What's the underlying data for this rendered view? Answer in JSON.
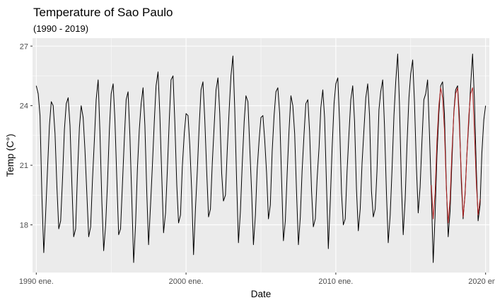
{
  "chart_data": {
    "type": "line",
    "title": "Temperature of Sao Paulo",
    "subtitle": "(1990 - 2019)",
    "xlabel": "Date",
    "ylabel": "Temp (C°)",
    "x_ticks": [
      {
        "label": "1990 ene.",
        "value": 1990.0
      },
      {
        "label": "2000 ene.",
        "value": 2000.0
      },
      {
        "label": "2010 ene.",
        "value": 2010.0
      },
      {
        "label": "2020 ene.",
        "value": 2020.0
      }
    ],
    "y_ticks": [
      18,
      21,
      24,
      27
    ],
    "xlim": [
      1989.75,
      2020.25
    ],
    "ylim": [
      15.6,
      27.4
    ],
    "grid": true,
    "series": [
      {
        "color": "#000000",
        "points": [
          [
            1990.0,
            25.0
          ],
          [
            1990.13,
            24.6
          ],
          [
            1990.25,
            23.5
          ],
          [
            1990.38,
            19.4
          ],
          [
            1990.5,
            16.6
          ],
          [
            1990.63,
            18.6
          ],
          [
            1990.75,
            20.8
          ],
          [
            1990.88,
            23.0
          ],
          [
            1991.0,
            24.2
          ],
          [
            1991.13,
            24.0
          ],
          [
            1991.25,
            22.6
          ],
          [
            1991.38,
            19.9
          ],
          [
            1991.5,
            17.8
          ],
          [
            1991.63,
            18.2
          ],
          [
            1991.75,
            20.3
          ],
          [
            1991.88,
            22.8
          ],
          [
            1992.0,
            24.1
          ],
          [
            1992.13,
            24.4
          ],
          [
            1992.25,
            23.0
          ],
          [
            1992.38,
            20.0
          ],
          [
            1992.5,
            17.4
          ],
          [
            1992.63,
            17.8
          ],
          [
            1992.75,
            20.5
          ],
          [
            1992.88,
            22.9
          ],
          [
            1993.0,
            24.0
          ],
          [
            1993.13,
            23.4
          ],
          [
            1993.25,
            21.8
          ],
          [
            1993.38,
            19.5
          ],
          [
            1993.5,
            17.4
          ],
          [
            1993.63,
            17.9
          ],
          [
            1993.75,
            20.2
          ],
          [
            1993.88,
            22.3
          ],
          [
            1994.0,
            24.3
          ],
          [
            1994.13,
            25.3
          ],
          [
            1994.25,
            22.7
          ],
          [
            1994.38,
            19.1
          ],
          [
            1994.5,
            16.7
          ],
          [
            1994.63,
            18.0
          ],
          [
            1994.75,
            20.0
          ],
          [
            1994.88,
            22.8
          ],
          [
            1995.0,
            24.6
          ],
          [
            1995.13,
            25.1
          ],
          [
            1995.25,
            23.3
          ],
          [
            1995.38,
            20.3
          ],
          [
            1995.5,
            17.5
          ],
          [
            1995.63,
            17.8
          ],
          [
            1995.75,
            20.0
          ],
          [
            1995.88,
            22.3
          ],
          [
            1996.0,
            24.3
          ],
          [
            1996.13,
            24.7
          ],
          [
            1996.25,
            22.5
          ],
          [
            1996.38,
            19.3
          ],
          [
            1996.5,
            16.1
          ],
          [
            1996.63,
            18.0
          ],
          [
            1996.75,
            20.8
          ],
          [
            1996.88,
            22.8
          ],
          [
            1997.0,
            24.1
          ],
          [
            1997.13,
            24.9
          ],
          [
            1997.25,
            23.0
          ],
          [
            1997.38,
            19.6
          ],
          [
            1997.5,
            17.0
          ],
          [
            1997.63,
            19.0
          ],
          [
            1997.75,
            20.9
          ],
          [
            1997.88,
            23.2
          ],
          [
            1998.0,
            25.0
          ],
          [
            1998.13,
            25.7
          ],
          [
            1998.25,
            23.6
          ],
          [
            1998.38,
            20.4
          ],
          [
            1998.5,
            17.6
          ],
          [
            1998.63,
            18.6
          ],
          [
            1998.75,
            20.7
          ],
          [
            1998.88,
            23.3
          ],
          [
            1999.0,
            25.3
          ],
          [
            1999.13,
            25.5
          ],
          [
            1999.25,
            23.2
          ],
          [
            1999.38,
            20.0
          ],
          [
            1999.5,
            18.1
          ],
          [
            1999.63,
            18.5
          ],
          [
            1999.75,
            20.9
          ],
          [
            1999.88,
            22.6
          ],
          [
            2000.0,
            23.6
          ],
          [
            2000.13,
            23.5
          ],
          [
            2000.25,
            22.0
          ],
          [
            2000.38,
            19.7
          ],
          [
            2000.5,
            16.5
          ],
          [
            2000.63,
            18.8
          ],
          [
            2000.75,
            20.7
          ],
          [
            2000.88,
            23.0
          ],
          [
            2001.0,
            24.8
          ],
          [
            2001.13,
            25.2
          ],
          [
            2001.25,
            23.3
          ],
          [
            2001.38,
            20.7
          ],
          [
            2001.5,
            18.4
          ],
          [
            2001.63,
            18.8
          ],
          [
            2001.75,
            21.1
          ],
          [
            2001.88,
            23.0
          ],
          [
            2002.0,
            24.8
          ],
          [
            2002.13,
            25.4
          ],
          [
            2002.25,
            23.6
          ],
          [
            2002.38,
            20.6
          ],
          [
            2002.5,
            19.2
          ],
          [
            2002.63,
            19.5
          ],
          [
            2002.75,
            21.7
          ],
          [
            2002.88,
            23.8
          ],
          [
            2003.0,
            25.5
          ],
          [
            2003.13,
            26.5
          ],
          [
            2003.25,
            23.9
          ],
          [
            2003.38,
            20.1
          ],
          [
            2003.5,
            17.1
          ],
          [
            2003.63,
            18.7
          ],
          [
            2003.75,
            21.0
          ],
          [
            2003.88,
            23.2
          ],
          [
            2004.0,
            24.5
          ],
          [
            2004.13,
            24.2
          ],
          [
            2004.25,
            22.0
          ],
          [
            2004.38,
            19.6
          ],
          [
            2004.5,
            17.0
          ],
          [
            2004.63,
            18.5
          ],
          [
            2004.75,
            20.8
          ],
          [
            2004.88,
            22.3
          ],
          [
            2005.0,
            23.4
          ],
          [
            2005.13,
            23.5
          ],
          [
            2005.25,
            22.3
          ],
          [
            2005.38,
            20.6
          ],
          [
            2005.5,
            18.3
          ],
          [
            2005.63,
            19.0
          ],
          [
            2005.75,
            21.7
          ],
          [
            2005.88,
            23.5
          ],
          [
            2006.0,
            24.7
          ],
          [
            2006.13,
            24.9
          ],
          [
            2006.25,
            23.6
          ],
          [
            2006.38,
            20.3
          ],
          [
            2006.5,
            17.2
          ],
          [
            2006.63,
            18.2
          ],
          [
            2006.75,
            20.6
          ],
          [
            2006.88,
            22.8
          ],
          [
            2007.0,
            24.5
          ],
          [
            2007.13,
            24.0
          ],
          [
            2007.25,
            22.6
          ],
          [
            2007.38,
            19.6
          ],
          [
            2007.5,
            17.0
          ],
          [
            2007.63,
            18.4
          ],
          [
            2007.75,
            20.7
          ],
          [
            2007.88,
            22.6
          ],
          [
            2008.0,
            24.1
          ],
          [
            2008.13,
            24.3
          ],
          [
            2008.25,
            22.7
          ],
          [
            2008.38,
            19.7
          ],
          [
            2008.5,
            17.9
          ],
          [
            2008.63,
            18.3
          ],
          [
            2008.75,
            20.3
          ],
          [
            2008.88,
            21.9
          ],
          [
            2009.0,
            23.9
          ],
          [
            2009.13,
            24.8
          ],
          [
            2009.25,
            23.4
          ],
          [
            2009.38,
            19.9
          ],
          [
            2009.5,
            16.8
          ],
          [
            2009.63,
            19.2
          ],
          [
            2009.75,
            21.8
          ],
          [
            2009.88,
            24.1
          ],
          [
            2010.0,
            25.1
          ],
          [
            2010.13,
            25.4
          ],
          [
            2010.25,
            23.2
          ],
          [
            2010.38,
            19.6
          ],
          [
            2010.5,
            18.0
          ],
          [
            2010.63,
            18.3
          ],
          [
            2010.75,
            20.7
          ],
          [
            2010.88,
            22.6
          ],
          [
            2011.0,
            24.3
          ],
          [
            2011.13,
            25.0
          ],
          [
            2011.25,
            23.2
          ],
          [
            2011.38,
            19.8
          ],
          [
            2011.5,
            17.7
          ],
          [
            2011.63,
            18.8
          ],
          [
            2011.75,
            21.1
          ],
          [
            2011.88,
            22.8
          ],
          [
            2012.0,
            24.4
          ],
          [
            2012.13,
            25.1
          ],
          [
            2012.25,
            23.5
          ],
          [
            2012.38,
            19.7
          ],
          [
            2012.5,
            18.4
          ],
          [
            2012.63,
            18.8
          ],
          [
            2012.75,
            20.7
          ],
          [
            2012.88,
            23.8
          ],
          [
            2013.0,
            24.7
          ],
          [
            2013.13,
            25.3
          ],
          [
            2013.25,
            23.0
          ],
          [
            2013.38,
            19.6
          ],
          [
            2013.5,
            17.1
          ],
          [
            2013.63,
            18.5
          ],
          [
            2013.75,
            20.7
          ],
          [
            2013.88,
            23.5
          ],
          [
            2014.0,
            25.2
          ],
          [
            2014.13,
            26.6
          ],
          [
            2014.25,
            24.1
          ],
          [
            2014.38,
            20.0
          ],
          [
            2014.5,
            17.5
          ],
          [
            2014.63,
            19.3
          ],
          [
            2014.75,
            22.0
          ],
          [
            2014.88,
            24.4
          ],
          [
            2015.0,
            25.6
          ],
          [
            2015.13,
            26.3
          ],
          [
            2015.25,
            24.2
          ],
          [
            2015.38,
            20.9
          ],
          [
            2015.5,
            18.6
          ],
          [
            2015.63,
            19.9
          ],
          [
            2015.75,
            22.2
          ],
          [
            2015.88,
            24.3
          ],
          [
            2016.0,
            24.6
          ],
          [
            2016.13,
            25.3
          ],
          [
            2016.25,
            22.6
          ],
          [
            2016.38,
            19.6
          ],
          [
            2016.5,
            16.1
          ],
          [
            2016.63,
            18.5
          ],
          [
            2016.75,
            21.5
          ],
          [
            2016.88,
            23.6
          ],
          [
            2017.0,
            25.0
          ],
          [
            2017.13,
            25.2
          ],
          [
            2017.25,
            23.6
          ],
          [
            2017.38,
            20.0
          ],
          [
            2017.5,
            17.4
          ],
          [
            2017.63,
            18.7
          ],
          [
            2017.75,
            21.1
          ],
          [
            2017.88,
            23.7
          ],
          [
            2018.0,
            24.8
          ],
          [
            2018.13,
            25.0
          ],
          [
            2018.25,
            23.5
          ],
          [
            2018.38,
            20.1
          ],
          [
            2018.5,
            18.3
          ],
          [
            2018.63,
            19.6
          ],
          [
            2018.75,
            21.5
          ],
          [
            2018.88,
            23.2
          ],
          [
            2019.0,
            25.0
          ],
          [
            2019.13,
            26.6
          ],
          [
            2019.25,
            24.4
          ],
          [
            2019.38,
            20.8
          ],
          [
            2019.5,
            18.2
          ],
          [
            2019.63,
            19.0
          ],
          [
            2019.75,
            21.6
          ],
          [
            2019.88,
            23.3
          ],
          [
            2020.0,
            24.0
          ]
        ]
      },
      {
        "color": "#b21f1f",
        "points": [
          [
            2016.38,
            20.0
          ],
          [
            2016.5,
            18.3
          ],
          [
            2016.63,
            19.6
          ],
          [
            2016.75,
            22.2
          ],
          [
            2016.88,
            24.0
          ],
          [
            2017.0,
            24.9
          ],
          [
            2017.13,
            24.4
          ],
          [
            2017.25,
            22.8
          ],
          [
            2017.38,
            19.8
          ],
          [
            2017.5,
            18.1
          ],
          [
            2017.63,
            19.3
          ],
          [
            2017.75,
            21.6
          ],
          [
            2017.88,
            23.6
          ],
          [
            2018.0,
            24.6
          ],
          [
            2018.13,
            24.9
          ],
          [
            2018.25,
            23.0
          ],
          [
            2018.38,
            20.5
          ],
          [
            2018.5,
            18.4
          ],
          [
            2018.63,
            19.5
          ],
          [
            2018.75,
            21.5
          ],
          [
            2018.88,
            23.5
          ],
          [
            2019.0,
            24.6
          ],
          [
            2019.13,
            24.9
          ],
          [
            2019.25,
            22.8
          ],
          [
            2019.38,
            20.1
          ],
          [
            2019.5,
            18.5
          ],
          [
            2019.63,
            19.3
          ]
        ]
      }
    ]
  }
}
